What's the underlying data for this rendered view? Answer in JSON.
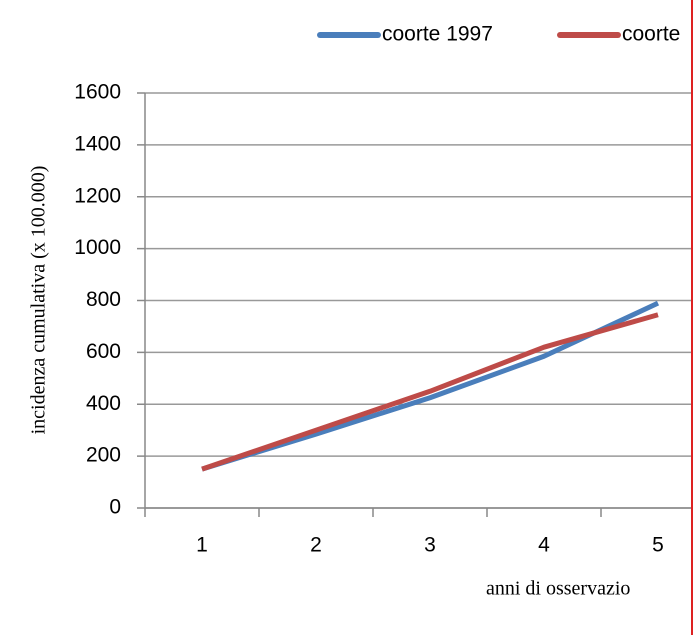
{
  "chart_data": {
    "type": "line",
    "y_label": "incidenza cumulativa (x 100.000)",
    "x_label": "anni di osservazio",
    "categories": [
      1,
      2,
      3,
      4,
      5
    ],
    "series": [
      {
        "name": "coorte 1997",
        "color": "#4a7ebb",
        "values": [
          150,
          285,
          425,
          585,
          790
        ]
      },
      {
        "name": "coorte",
        "color": "#be4b48",
        "values": [
          150,
          300,
          450,
          620,
          745
        ]
      }
    ],
    "ylim": [
      0,
      1600
    ],
    "yticks": [
      0,
      200,
      400,
      600,
      800,
      1000,
      1200,
      1400,
      1600
    ],
    "grid": true
  }
}
